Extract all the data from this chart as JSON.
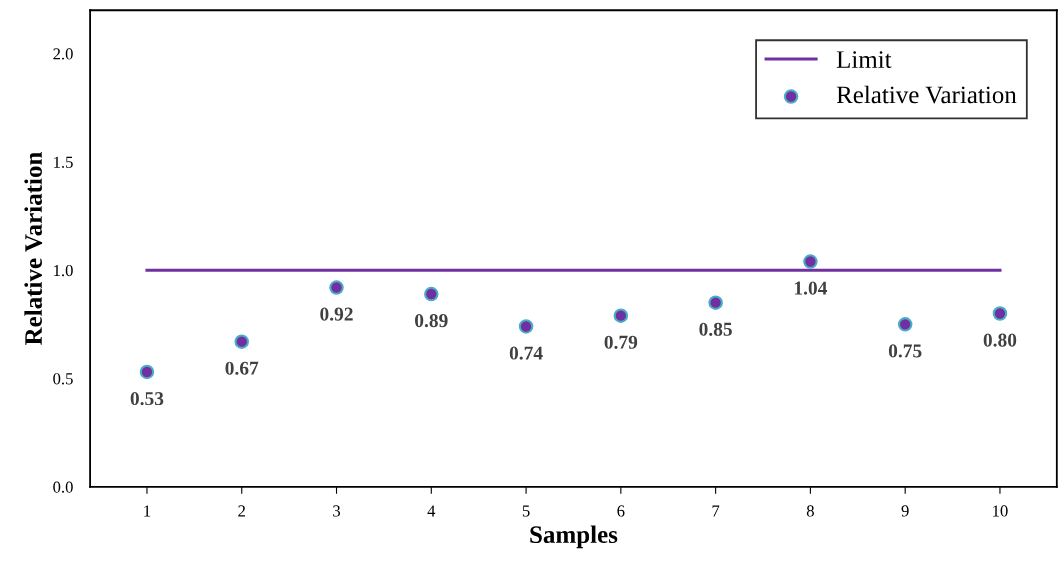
{
  "chart_data": {
    "type": "scatter",
    "xlabel": "Samples",
    "ylabel": "Relative Variation",
    "categories": [
      "1",
      "2",
      "3",
      "4",
      "5",
      "6",
      "7",
      "8",
      "9",
      "10"
    ],
    "series": [
      {
        "name": "Limit",
        "type": "line",
        "color": "#7030a0",
        "marker": "none",
        "line_style": "solid",
        "values": [
          1.0,
          1.0,
          1.0,
          1.0,
          1.0,
          1.0,
          1.0,
          1.0,
          1.0,
          1.0
        ]
      },
      {
        "name": "Relative Variation",
        "color": "#7030a0",
        "marker": "circle",
        "values": [
          0.53,
          0.67,
          0.92,
          0.89,
          0.74,
          0.79,
          0.85,
          1.04,
          0.75,
          0.8
        ],
        "value_labels": [
          "0.53",
          "0.67",
          "0.92",
          "0.89",
          "0.74",
          "0.79",
          "0.85",
          "1.04",
          "0.75",
          "0.80"
        ]
      }
    ],
    "ylim": [
      0,
      2.2
    ],
    "yticks": [
      {
        "value": 0,
        "label": "0.0"
      },
      {
        "value": 0.5,
        "label": "0.5"
      },
      {
        "value": 1.0,
        "label": "1.0"
      },
      {
        "value": 1.5,
        "label": "1.5"
      },
      {
        "value": 2.0,
        "label": "2.0"
      }
    ],
    "grid": false,
    "legend": "top right"
  }
}
